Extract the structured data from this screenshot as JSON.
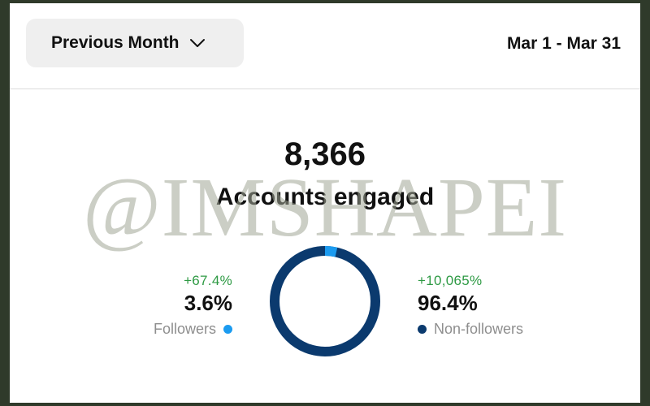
{
  "filter": {
    "period_label": "Previous Month",
    "date_range": "Mar 1 - Mar 31"
  },
  "engagement": {
    "total": "8,366",
    "label": "Accounts engaged"
  },
  "breakdown": {
    "followers": {
      "change": "+67.4%",
      "percent": "3.6%",
      "label": "Followers",
      "value": 3.6,
      "color": "#1b9bf0"
    },
    "non_followers": {
      "change": "+10,065%",
      "percent": "96.4%",
      "label": "Non-followers",
      "value": 96.4,
      "color": "#0b3a6e"
    }
  },
  "watermark": "@IMSHAPEI",
  "colors": {
    "border": "#2f3a2a",
    "positive_change": "#2e9a44"
  }
}
